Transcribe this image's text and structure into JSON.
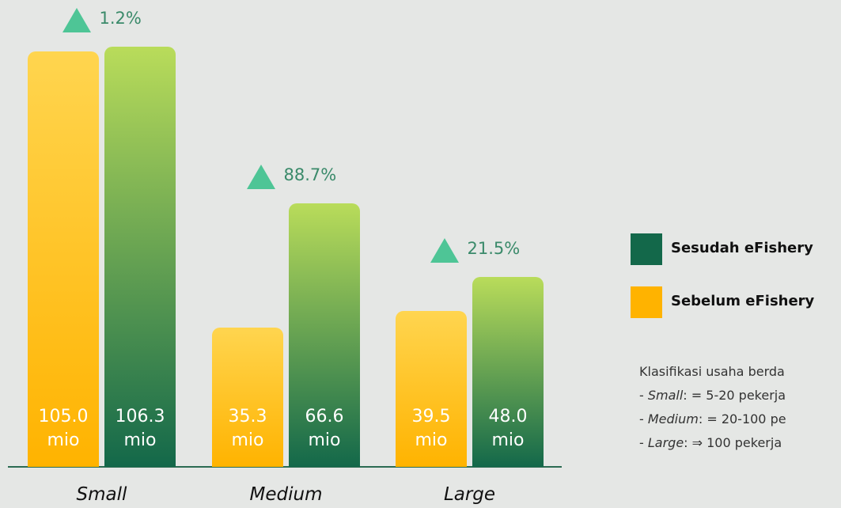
{
  "chart_data": {
    "type": "bar",
    "categories": [
      "Small",
      "Medium",
      "Large"
    ],
    "series": [
      {
        "name": "Sebelum eFishery",
        "color": "#ffb300",
        "gradient_top": "#ffd54f",
        "values": [
          105.0,
          35.3,
          39.5
        ],
        "value_labels": [
          "105.0 mio",
          "35.3 mio",
          "39.5 mio"
        ]
      },
      {
        "name": "Sesudah eFishery",
        "color": "#13684a",
        "gradient_top": "#b9dc5a",
        "values": [
          106.3,
          66.6,
          48.0
        ],
        "value_labels": [
          "106.3 mio",
          "66.6 mio",
          "48.0 mio"
        ]
      }
    ],
    "annotations": [
      "1.2%",
      "88.7%",
      "21.5%"
    ],
    "ylim": [
      0,
      118
    ],
    "legend_order": [
      1,
      0
    ]
  },
  "notes": {
    "heading": "Klasifikasi usaha berda",
    "items": [
      {
        "prefix": "- ",
        "term": "Small",
        "rest": ": = 5-20 pekerja"
      },
      {
        "prefix": "- ",
        "term": "Medium",
        "rest": ": = 20-100 pe"
      },
      {
        "prefix": "- ",
        "term": "Large",
        "rest": ": ⇒ 100 pekerja"
      }
    ]
  }
}
